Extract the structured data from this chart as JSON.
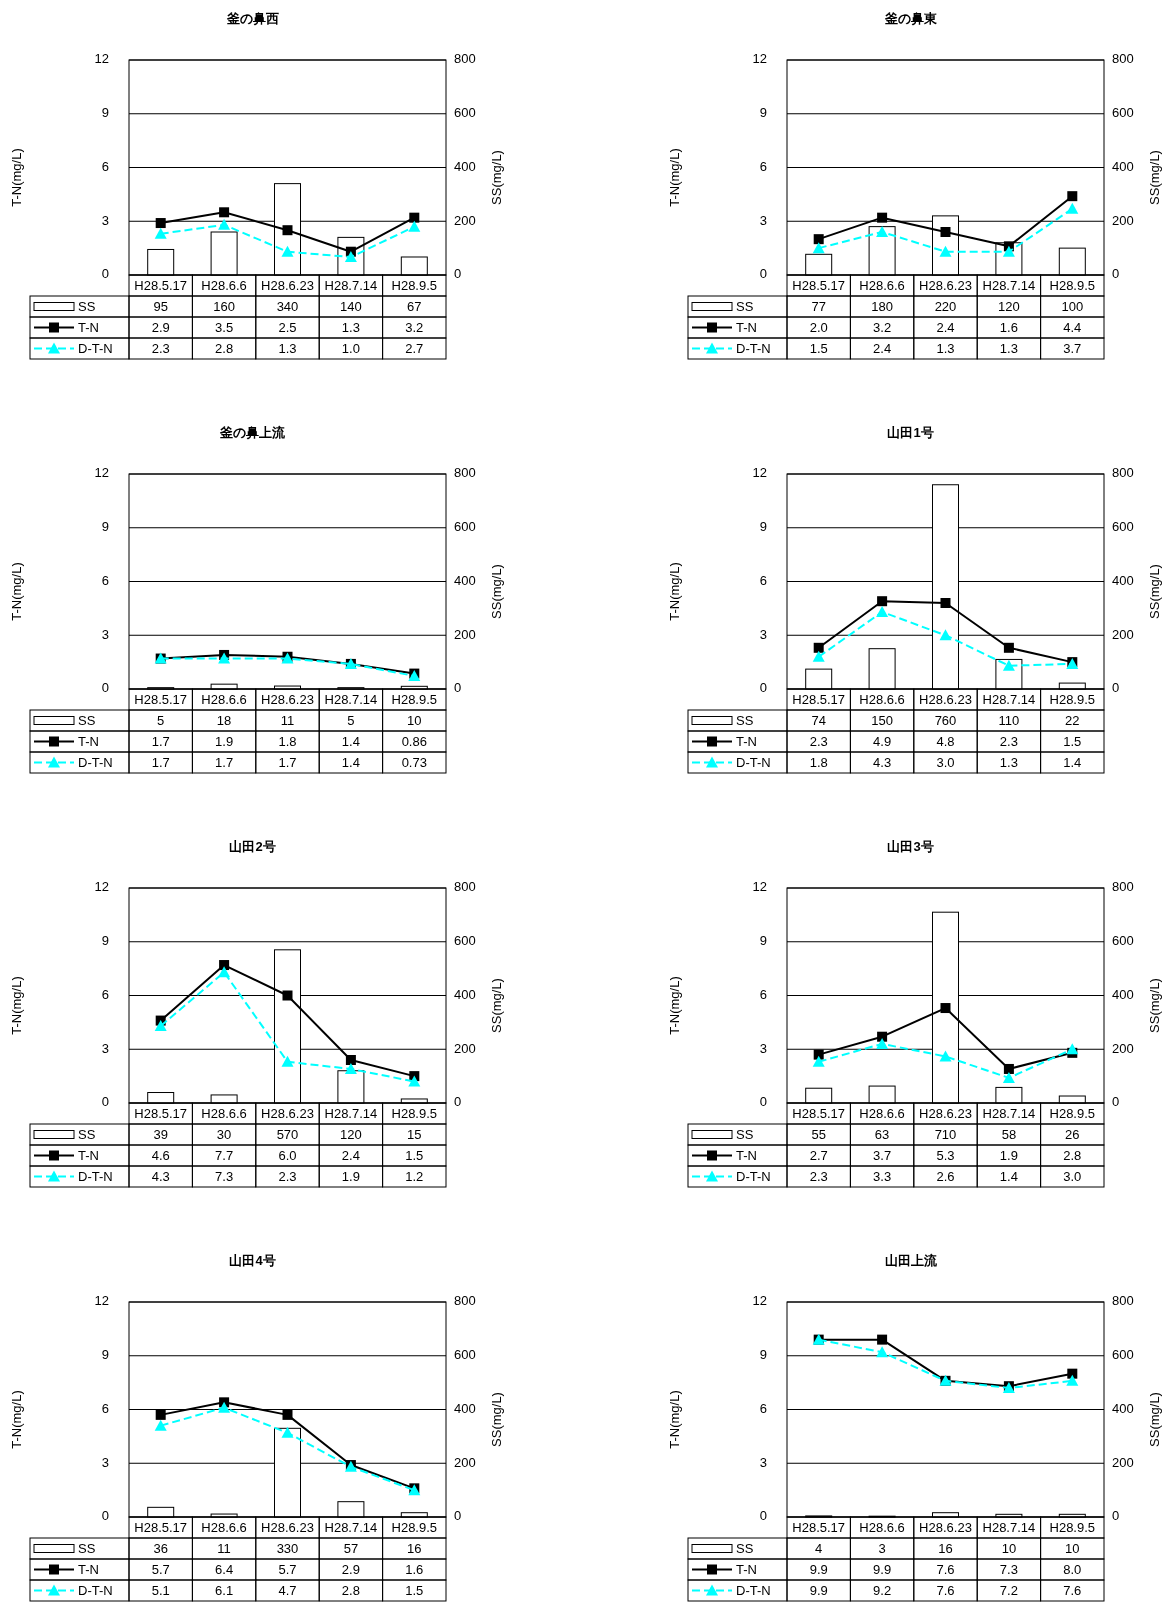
{
  "chart_data": [
    {
      "type": "bar",
      "title": "釜の鼻西",
      "categories": [
        "H28.5.17",
        "H28.6.6",
        "H28.6.23",
        "H28.7.14",
        "H28.9.5"
      ],
      "ylabel": "T-N(mg/L)",
      "y2label": "SS(mg/L)",
      "ylim": [
        0,
        12
      ],
      "yticks": [
        0,
        3,
        6,
        9,
        12
      ],
      "y2lim": [
        0,
        800
      ],
      "y2ticks": [
        0,
        200,
        400,
        600,
        800
      ],
      "grid": "y",
      "legend": "bottom",
      "series": [
        {
          "name": "SS",
          "type": "bar",
          "axis": "y2",
          "color": "#ffffff",
          "values": [
            95,
            160,
            340,
            140,
            67
          ],
          "value_labels": [
            "95",
            "160",
            "340",
            "140",
            "67"
          ]
        },
        {
          "name": "T-N",
          "type": "line",
          "color": "#000000",
          "marker": "square",
          "line_style": "solid",
          "values": [
            2.9,
            3.5,
            2.5,
            1.3,
            3.2
          ],
          "value_labels": [
            "2.9",
            "3.5",
            "2.5",
            "1.3",
            "3.2"
          ]
        },
        {
          "name": "D-T-N",
          "type": "line",
          "color": "#00ffff",
          "marker": "triangle",
          "line_style": "dashed",
          "values": [
            2.3,
            2.8,
            1.3,
            1.0,
            2.7
          ],
          "value_labels": [
            "2.3",
            "2.8",
            "1.3",
            "1.0",
            "2.7"
          ]
        }
      ]
    },
    {
      "type": "bar",
      "title": "釜の鼻東",
      "categories": [
        "H28.5.17",
        "H28.6.6",
        "H28.6.23",
        "H28.7.14",
        "H28.9.5"
      ],
      "ylabel": "T-N(mg/L)",
      "y2label": "SS(mg/L)",
      "ylim": [
        0,
        12
      ],
      "yticks": [
        0,
        3,
        6,
        9,
        12
      ],
      "y2lim": [
        0,
        800
      ],
      "y2ticks": [
        0,
        200,
        400,
        600,
        800
      ],
      "grid": "y",
      "legend": "bottom",
      "series": [
        {
          "name": "SS",
          "type": "bar",
          "axis": "y2",
          "color": "#ffffff",
          "values": [
            77,
            180,
            220,
            120,
            100
          ],
          "value_labels": [
            "77",
            "180",
            "220",
            "120",
            "100"
          ]
        },
        {
          "name": "T-N",
          "type": "line",
          "color": "#000000",
          "marker": "square",
          "line_style": "solid",
          "values": [
            2.0,
            3.2,
            2.4,
            1.6,
            4.4
          ],
          "value_labels": [
            "2.0",
            "3.2",
            "2.4",
            "1.6",
            "4.4"
          ]
        },
        {
          "name": "D-T-N",
          "type": "line",
          "color": "#00ffff",
          "marker": "triangle",
          "line_style": "dashed",
          "values": [
            1.5,
            2.4,
            1.3,
            1.3,
            3.7
          ],
          "value_labels": [
            "1.5",
            "2.4",
            "1.3",
            "1.3",
            "3.7"
          ]
        }
      ]
    },
    {
      "type": "bar",
      "title": "釜の鼻上流",
      "categories": [
        "H28.5.17",
        "H28.6.6",
        "H28.6.23",
        "H28.7.14",
        "H28.9.5"
      ],
      "ylabel": "T-N(mg/L)",
      "y2label": "SS(mg/L)",
      "ylim": [
        0,
        12
      ],
      "yticks": [
        0,
        3,
        6,
        9,
        12
      ],
      "y2lim": [
        0,
        800
      ],
      "y2ticks": [
        0,
        200,
        400,
        600,
        800
      ],
      "grid": "y",
      "legend": "bottom",
      "series": [
        {
          "name": "SS",
          "type": "bar",
          "axis": "y2",
          "color": "#ffffff",
          "values": [
            5,
            18,
            11,
            5,
            10
          ],
          "value_labels": [
            "5",
            "18",
            "11",
            "5",
            "10"
          ]
        },
        {
          "name": "T-N",
          "type": "line",
          "color": "#000000",
          "marker": "square",
          "line_style": "solid",
          "values": [
            1.7,
            1.9,
            1.8,
            1.4,
            0.86
          ],
          "value_labels": [
            "1.7",
            "1.9",
            "1.8",
            "1.4",
            "0.86"
          ]
        },
        {
          "name": "D-T-N",
          "type": "line",
          "color": "#00ffff",
          "marker": "triangle",
          "line_style": "dashed",
          "values": [
            1.7,
            1.7,
            1.7,
            1.4,
            0.73
          ],
          "value_labels": [
            "1.7",
            "1.7",
            "1.7",
            "1.4",
            "0.73"
          ]
        }
      ]
    },
    {
      "type": "bar",
      "title": "山田1号",
      "categories": [
        "H28.5.17",
        "H28.6.6",
        "H28.6.23",
        "H28.7.14",
        "H28.9.5"
      ],
      "ylabel": "T-N(mg/L)",
      "y2label": "SS(mg/L)",
      "ylim": [
        0,
        12
      ],
      "yticks": [
        0,
        3,
        6,
        9,
        12
      ],
      "y2lim": [
        0,
        800
      ],
      "y2ticks": [
        0,
        200,
        400,
        600,
        800
      ],
      "grid": "y",
      "legend": "bottom",
      "series": [
        {
          "name": "SS",
          "type": "bar",
          "axis": "y2",
          "color": "#ffffff",
          "values": [
            74,
            150,
            760,
            110,
            22
          ],
          "value_labels": [
            "74",
            "150",
            "760",
            "110",
            "22"
          ]
        },
        {
          "name": "T-N",
          "type": "line",
          "color": "#000000",
          "marker": "square",
          "line_style": "solid",
          "values": [
            2.3,
            4.9,
            4.8,
            2.3,
            1.5
          ],
          "value_labels": [
            "2.3",
            "4.9",
            "4.8",
            "2.3",
            "1.5"
          ]
        },
        {
          "name": "D-T-N",
          "type": "line",
          "color": "#00ffff",
          "marker": "triangle",
          "line_style": "dashed",
          "values": [
            1.8,
            4.3,
            3.0,
            1.3,
            1.4
          ],
          "value_labels": [
            "1.8",
            "4.3",
            "3.0",
            "1.3",
            "1.4"
          ]
        }
      ]
    },
    {
      "type": "bar",
      "title": "山田2号",
      "categories": [
        "H28.5.17",
        "H28.6.6",
        "H28.6.23",
        "H28.7.14",
        "H28.9.5"
      ],
      "ylabel": "T-N(mg/L)",
      "y2label": "SS(mg/L)",
      "ylim": [
        0,
        12
      ],
      "yticks": [
        0,
        3,
        6,
        9,
        12
      ],
      "y2lim": [
        0,
        800
      ],
      "y2ticks": [
        0,
        200,
        400,
        600,
        800
      ],
      "grid": "y",
      "legend": "bottom",
      "series": [
        {
          "name": "SS",
          "type": "bar",
          "axis": "y2",
          "color": "#ffffff",
          "values": [
            39,
            30,
            570,
            120,
            15
          ],
          "value_labels": [
            "39",
            "30",
            "570",
            "120",
            "15"
          ]
        },
        {
          "name": "T-N",
          "type": "line",
          "color": "#000000",
          "marker": "square",
          "line_style": "solid",
          "values": [
            4.6,
            7.7,
            6.0,
            2.4,
            1.5
          ],
          "value_labels": [
            "4.6",
            "7.7",
            "6.0",
            "2.4",
            "1.5"
          ]
        },
        {
          "name": "D-T-N",
          "type": "line",
          "color": "#00ffff",
          "marker": "triangle",
          "line_style": "dashed",
          "values": [
            4.3,
            7.3,
            2.3,
            1.9,
            1.2
          ],
          "value_labels": [
            "4.3",
            "7.3",
            "2.3",
            "1.9",
            "1.2"
          ]
        }
      ]
    },
    {
      "type": "bar",
      "title": "山田3号",
      "categories": [
        "H28.5.17",
        "H28.6.6",
        "H28.6.23",
        "H28.7.14",
        "H28.9.5"
      ],
      "ylabel": "T-N(mg/L)",
      "y2label": "SS(mg/L)",
      "ylim": [
        0,
        12
      ],
      "yticks": [
        0,
        3,
        6,
        9,
        12
      ],
      "y2lim": [
        0,
        800
      ],
      "y2ticks": [
        0,
        200,
        400,
        600,
        800
      ],
      "grid": "y",
      "legend": "bottom",
      "series": [
        {
          "name": "SS",
          "type": "bar",
          "axis": "y2",
          "color": "#ffffff",
          "values": [
            55,
            63,
            710,
            58,
            26
          ],
          "value_labels": [
            "55",
            "63",
            "710",
            "58",
            "26"
          ]
        },
        {
          "name": "T-N",
          "type": "line",
          "color": "#000000",
          "marker": "square",
          "line_style": "solid",
          "values": [
            2.7,
            3.7,
            5.3,
            1.9,
            2.8
          ],
          "value_labels": [
            "2.7",
            "3.7",
            "5.3",
            "1.9",
            "2.8"
          ]
        },
        {
          "name": "D-T-N",
          "type": "line",
          "color": "#00ffff",
          "marker": "triangle",
          "line_style": "dashed",
          "values": [
            2.3,
            3.3,
            2.6,
            1.4,
            3.0
          ],
          "value_labels": [
            "2.3",
            "3.3",
            "2.6",
            "1.4",
            "3.0"
          ]
        }
      ]
    },
    {
      "type": "bar",
      "title": "山田4号",
      "categories": [
        "H28.5.17",
        "H28.6.6",
        "H28.6.23",
        "H28.7.14",
        "H28.9.5"
      ],
      "ylabel": "T-N(mg/L)",
      "y2label": "SS(mg/L)",
      "ylim": [
        0,
        12
      ],
      "yticks": [
        0,
        3,
        6,
        9,
        12
      ],
      "y2lim": [
        0,
        800
      ],
      "y2ticks": [
        0,
        200,
        400,
        600,
        800
      ],
      "grid": "y",
      "legend": "bottom",
      "series": [
        {
          "name": "SS",
          "type": "bar",
          "axis": "y2",
          "color": "#ffffff",
          "values": [
            36,
            11,
            330,
            57,
            16
          ],
          "value_labels": [
            "36",
            "11",
            "330",
            "57",
            "16"
          ]
        },
        {
          "name": "T-N",
          "type": "line",
          "color": "#000000",
          "marker": "square",
          "line_style": "solid",
          "values": [
            5.7,
            6.4,
            5.7,
            2.9,
            1.6
          ],
          "value_labels": [
            "5.7",
            "6.4",
            "5.7",
            "2.9",
            "1.6"
          ]
        },
        {
          "name": "D-T-N",
          "type": "line",
          "color": "#00ffff",
          "marker": "triangle",
          "line_style": "dashed",
          "values": [
            5.1,
            6.1,
            4.7,
            2.8,
            1.5
          ],
          "value_labels": [
            "5.1",
            "6.1",
            "4.7",
            "2.8",
            "1.5"
          ]
        }
      ]
    },
    {
      "type": "bar",
      "title": "山田上流",
      "categories": [
        "H28.5.17",
        "H28.6.6",
        "H28.6.23",
        "H28.7.14",
        "H28.9.5"
      ],
      "ylabel": "T-N(mg/L)",
      "y2label": "SS(mg/L)",
      "ylim": [
        0,
        12
      ],
      "yticks": [
        0,
        3,
        6,
        9,
        12
      ],
      "y2lim": [
        0,
        800
      ],
      "y2ticks": [
        0,
        200,
        400,
        600,
        800
      ],
      "grid": "y",
      "legend": "bottom",
      "series": [
        {
          "name": "SS",
          "type": "bar",
          "axis": "y2",
          "color": "#ffffff",
          "values": [
            4,
            3,
            16,
            10,
            10
          ],
          "value_labels": [
            "4",
            "3",
            "16",
            "10",
            "10"
          ]
        },
        {
          "name": "T-N",
          "type": "line",
          "color": "#000000",
          "marker": "square",
          "line_style": "solid",
          "values": [
            9.9,
            9.9,
            7.6,
            7.3,
            8.0
          ],
          "value_labels": [
            "9.9",
            "9.9",
            "7.6",
            "7.3",
            "8.0"
          ]
        },
        {
          "name": "D-T-N",
          "type": "line",
          "color": "#00ffff",
          "marker": "triangle",
          "line_style": "dashed",
          "values": [
            9.9,
            9.2,
            7.6,
            7.2,
            7.6
          ],
          "value_labels": [
            "9.9",
            "9.2",
            "7.6",
            "7.2",
            "7.6"
          ]
        }
      ]
    }
  ]
}
